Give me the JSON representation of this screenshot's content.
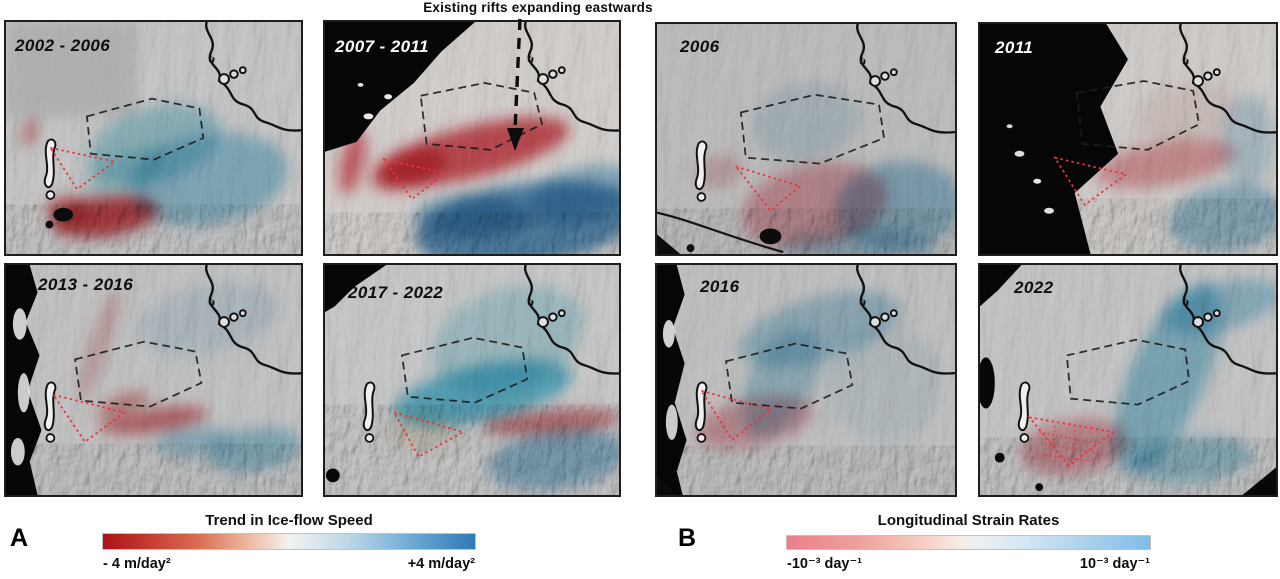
{
  "figure": {
    "annotation": "Existing rifts expanding eastwards",
    "groups": [
      {
        "label": "A",
        "panels": [
          {
            "label": "2002 - 2006"
          },
          {
            "label": "2007 - 2011"
          },
          {
            "label": "2013 - 2016"
          },
          {
            "label": "2017 - 2022"
          }
        ],
        "colorbar": {
          "title": "Trend in Ice-flow Speed",
          "min": "- 4 m/day²",
          "max": "+4 m/day²",
          "min_color": "#ae1117",
          "max_color": "#2d7ab8"
        }
      },
      {
        "label": "B",
        "panels": [
          {
            "label": "2006"
          },
          {
            "label": "2011"
          },
          {
            "label": "2016"
          },
          {
            "label": "2022"
          }
        ],
        "colorbar": {
          "title": "Longitudinal Strain Rates",
          "min": "-10⁻³ day⁻¹",
          "max": "10⁻³ day⁻¹",
          "min_color": "#ea7f8b",
          "max_color": "#7fbde8"
        }
      }
    ]
  }
}
